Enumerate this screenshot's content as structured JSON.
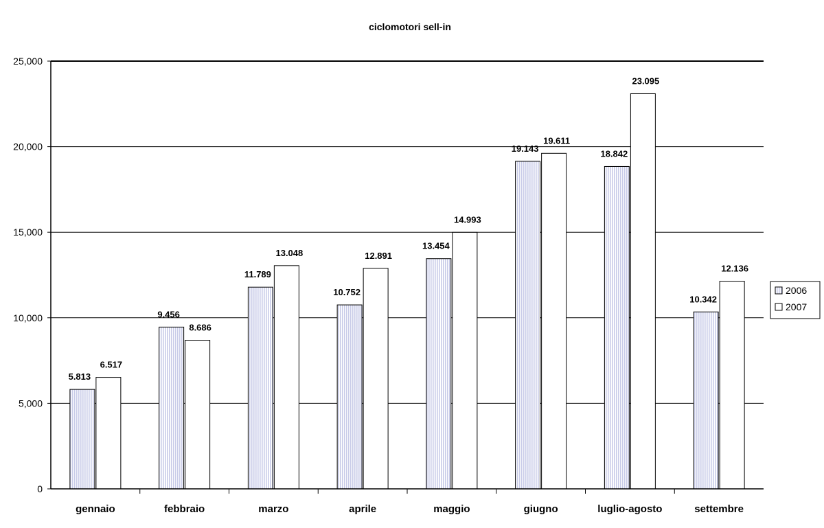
{
  "chart_data": {
    "type": "bar",
    "title": "ciclomotori sell-in",
    "xlabel": "",
    "ylabel": "",
    "categories": [
      "gennaio",
      "febbraio",
      "marzo",
      "aprile",
      "maggio",
      "giugno",
      "luglio-agosto",
      "settembre"
    ],
    "series": [
      {
        "name": "2006",
        "color": "#c8cbe8",
        "values": [
          5813,
          9456,
          11789,
          10752,
          13454,
          19143,
          18842,
          10342
        ],
        "labels": [
          "5.813",
          "9.456",
          "11.789",
          "10.752",
          "13.454",
          "19.143",
          "18.842",
          "10.342"
        ]
      },
      {
        "name": "2007",
        "color": "#ffffff",
        "values": [
          6517,
          8686,
          13048,
          12891,
          14993,
          19611,
          23095,
          12136
        ],
        "labels": [
          "6.517",
          "8.686",
          "13.048",
          "12.891",
          "14.993",
          "19.611",
          "23.095",
          "12.136"
        ]
      }
    ],
    "ylim": [
      0,
      25000
    ],
    "yticks": [
      0,
      5000,
      10000,
      15000,
      20000,
      25000
    ],
    "ytick_labels": [
      "0",
      "5,000",
      "10,000",
      "15,000",
      "20,000",
      "25,000"
    ],
    "grid": true,
    "legend_position": "right"
  }
}
